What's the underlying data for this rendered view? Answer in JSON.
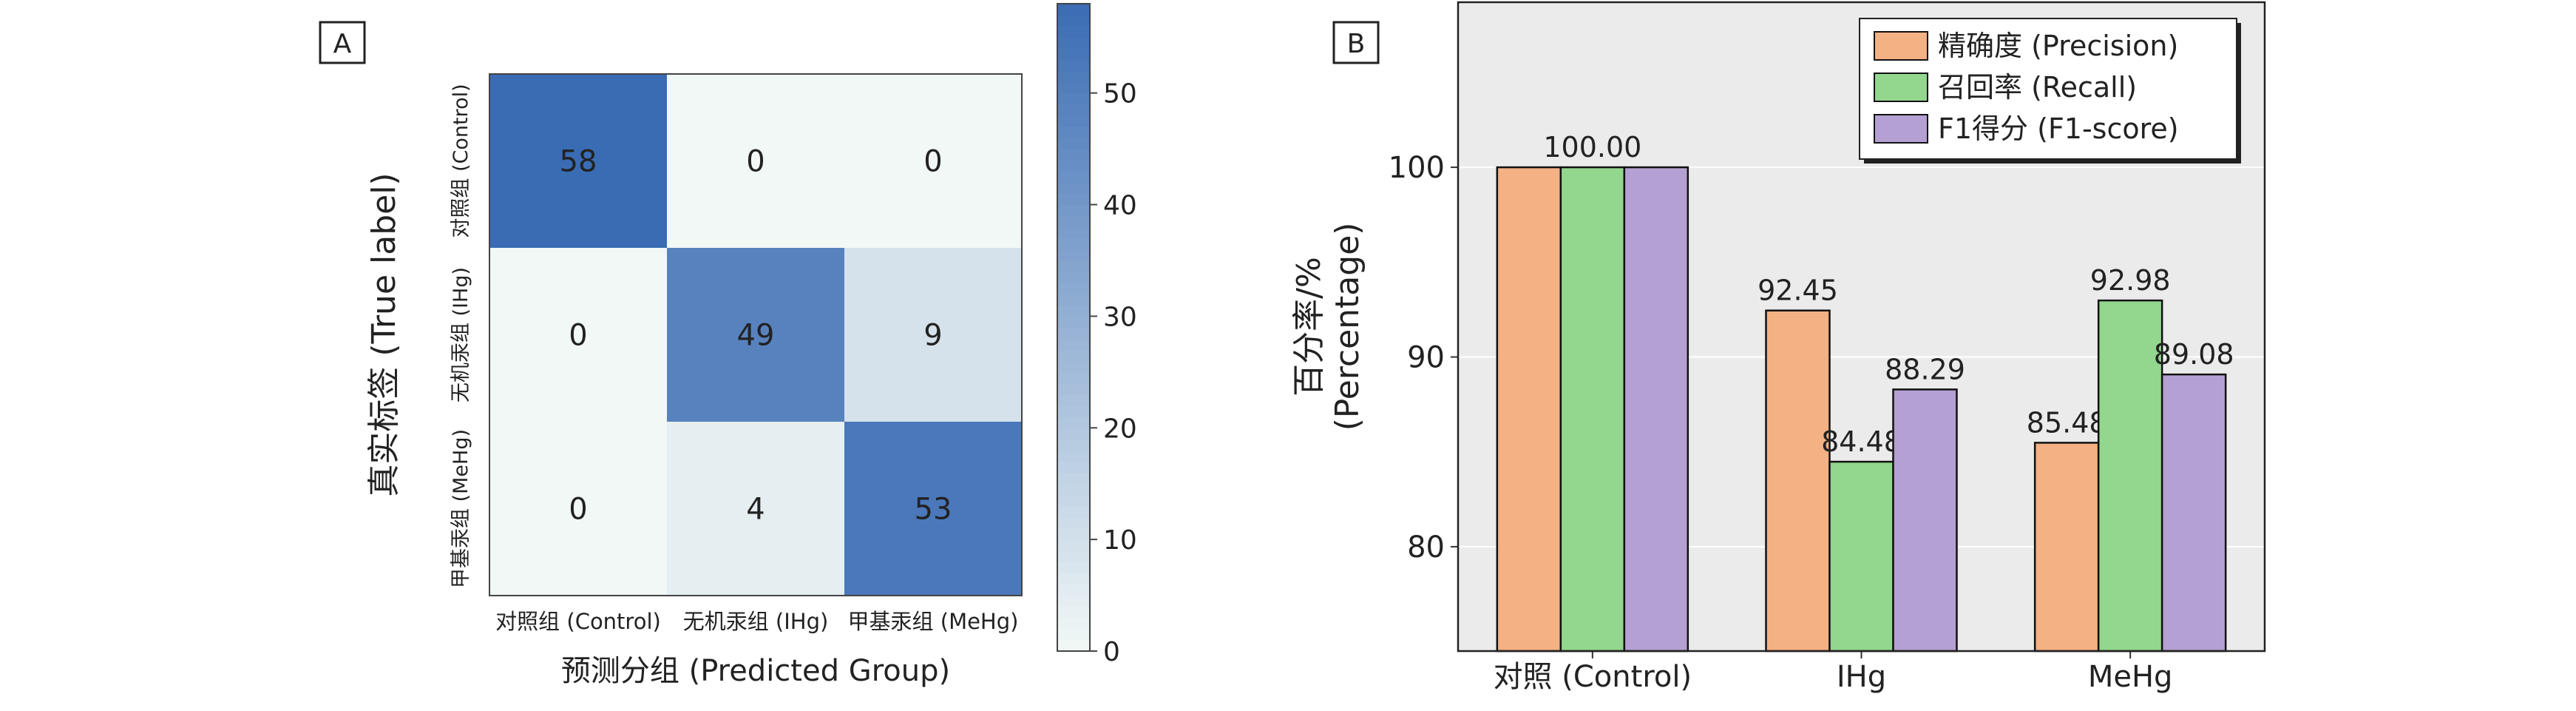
{
  "panel_a_label": "A",
  "panel_b_label": "B",
  "chart_data": [
    {
      "type": "heatmap",
      "panel": "A",
      "title": "",
      "xlabel": "预测分组 (Predicted Group)",
      "ylabel": "真实标签 (True label)",
      "x_categories": [
        "对照组 (Control)",
        "无机汞组 (IHg)",
        "甲基汞组 (MeHg)"
      ],
      "y_categories": [
        "对照组 (Control)",
        "无机汞组 (IHg)",
        "甲基汞组 (MeHg)"
      ],
      "values": [
        [
          58,
          0,
          0
        ],
        [
          0,
          49,
          9
        ],
        [
          0,
          4,
          53
        ]
      ],
      "colorbar": {
        "min": 0,
        "max": 58,
        "ticks": [
          0,
          10,
          20,
          30,
          40,
          50
        ]
      },
      "colors": {
        "low": "#f2f8f6",
        "high": "#3a6cb4"
      }
    },
    {
      "type": "bar",
      "panel": "B",
      "title": "",
      "xlabel": "",
      "ylabel": "百分率/% (Percentage)",
      "ylabel_lines": [
        "百分率/%",
        "(Percentage)"
      ],
      "categories": [
        "对照 (Control)",
        "IHg",
        "MeHg"
      ],
      "series": [
        {
          "name": "精确度 (Precision)",
          "values": [
            100.0,
            92.45,
            85.48
          ],
          "labels": [
            "",
            "92.45",
            "85.48"
          ],
          "color": "#f4b183"
        },
        {
          "name": "召回率 (Recall)",
          "values": [
            100.0,
            84.48,
            92.98
          ],
          "labels": [
            "100.00",
            "84.48",
            "92.98"
          ],
          "color": "#92d78d"
        },
        {
          "name": "F1得分 (F1-score)",
          "values": [
            100.0,
            88.29,
            89.08
          ],
          "labels": [
            "",
            "88.29",
            "89.08"
          ],
          "color": "#b4a0d2"
        }
      ],
      "ylim": [
        74.5,
        108.7
      ],
      "yticks": [
        80,
        90,
        100
      ],
      "grid": true,
      "legend": "top-right",
      "background": "#ebebeb"
    }
  ]
}
